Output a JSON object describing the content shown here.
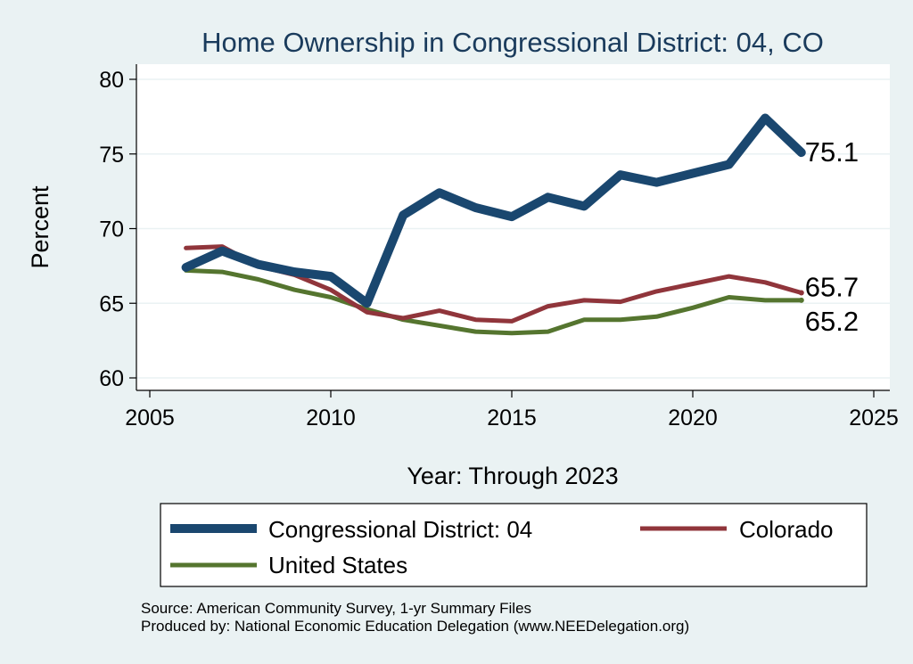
{
  "chart_data": {
    "type": "line",
    "title": "Home Ownership in Congressional District:  04, CO",
    "xlabel": "Year: Through 2023",
    "ylabel": "Percent",
    "xlim": [
      2005,
      2025
    ],
    "ylim": [
      60,
      80
    ],
    "xticks": [
      2005,
      2010,
      2015,
      2020,
      2025
    ],
    "yticks": [
      60,
      65,
      70,
      75,
      80
    ],
    "grid": true,
    "x": [
      2006,
      2007,
      2008,
      2009,
      2010,
      2011,
      2012,
      2013,
      2014,
      2015,
      2016,
      2017,
      2018,
      2019,
      2020,
      2021,
      2022,
      2023
    ],
    "series": [
      {
        "name": "Congressional District:  04",
        "color": "#1a476f",
        "values": [
          67.4,
          68.5,
          67.6,
          67.1,
          66.8,
          65.0,
          70.9,
          72.4,
          71.4,
          70.8,
          72.1,
          71.5,
          73.6,
          73.1,
          73.7,
          74.3,
          77.4,
          75.1
        ],
        "end_label": "75.1"
      },
      {
        "name": "Colorado",
        "color": "#90353b",
        "values": [
          68.7,
          68.8,
          67.5,
          66.9,
          65.9,
          64.4,
          64.0,
          64.5,
          63.9,
          63.8,
          64.8,
          65.2,
          65.1,
          65.8,
          66.3,
          66.8,
          66.4,
          65.7
        ],
        "end_label": "65.7"
      },
      {
        "name": "United States",
        "color": "#55752f",
        "values": [
          67.2,
          67.1,
          66.6,
          65.9,
          65.4,
          64.6,
          63.9,
          63.5,
          63.1,
          63.0,
          63.1,
          63.9,
          63.9,
          64.1,
          64.7,
          65.4,
          65.2,
          65.2
        ],
        "end_label": "65.2"
      }
    ],
    "legend": {
      "placement": "bottom",
      "entries": [
        "Congressional District:  04",
        "Colorado",
        "United States"
      ]
    },
    "notes": [
      "Source: American Community Survey, 1-yr Summary Files",
      "Produced by: National Economic Education Delegation (www.NEEDelegation.org)"
    ]
  }
}
